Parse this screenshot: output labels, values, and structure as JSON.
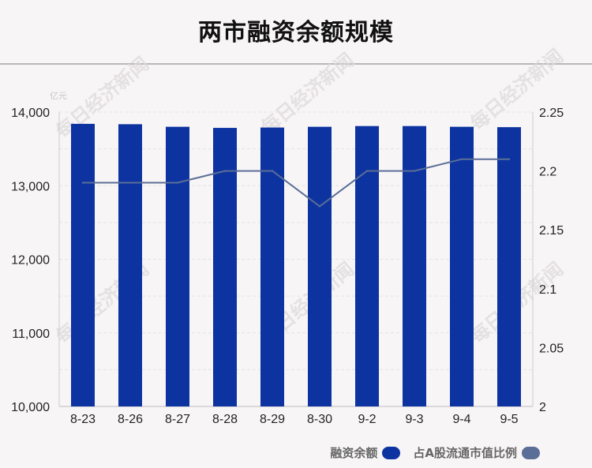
{
  "chart_data": {
    "type": "bar",
    "title": "两市融资余额规模",
    "unit_left": "亿元",
    "categories": [
      "8-23",
      "8-26",
      "8-27",
      "8-28",
      "8-29",
      "8-30",
      "9-2",
      "9-3",
      "9-4",
      "9-5"
    ],
    "series": [
      {
        "name": "融资余额",
        "type": "bar",
        "axis": "left",
        "color": "#0c33a0",
        "values": [
          13840,
          13835,
          13800,
          13785,
          13790,
          13800,
          13810,
          13810,
          13800,
          13795
        ]
      },
      {
        "name": "占A股流通市值比例",
        "type": "line",
        "axis": "right",
        "color": "#5b6e97",
        "values": [
          2.19,
          2.19,
          2.19,
          2.2,
          2.2,
          2.17,
          2.2,
          2.2,
          2.21,
          2.21
        ]
      }
    ],
    "ylim_left": [
      10000,
      14000
    ],
    "yticks_left": [
      "10,000",
      "11,000",
      "12,000",
      "13,000",
      "14,000"
    ],
    "ylim_right": [
      2,
      2.25
    ],
    "yticks_right": [
      "2",
      "2.05",
      "2.1",
      "2.15",
      "2.2",
      "2.25"
    ],
    "grid": true,
    "legend_position": "bottom-right"
  },
  "watermark": "每日经济新闻"
}
